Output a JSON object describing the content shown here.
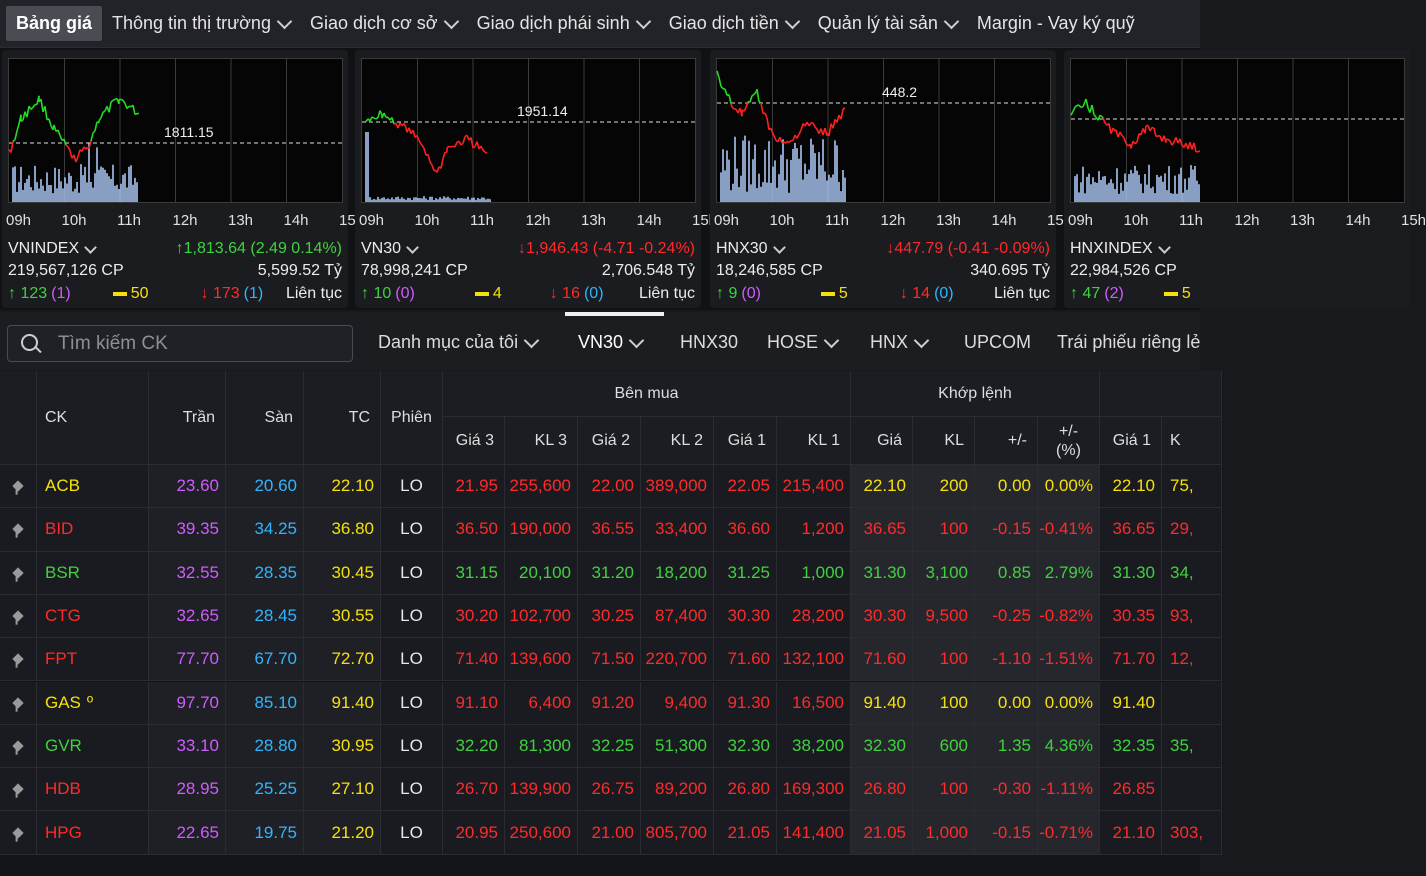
{
  "nav": {
    "items": [
      {
        "label": "Bảng giá",
        "active": true,
        "dropdown": false
      },
      {
        "label": "Thông tin thị trường",
        "dropdown": true
      },
      {
        "label": "Giao dịch cơ sở",
        "dropdown": true
      },
      {
        "label": "Giao dịch phái sinh",
        "dropdown": true
      },
      {
        "label": "Giao dịch tiền",
        "dropdown": true
      },
      {
        "label": "Quản lý tài sản",
        "dropdown": true
      },
      {
        "label": "Margin - Vay ký quỹ",
        "dropdown": false
      }
    ]
  },
  "time_ticks": [
    "09h",
    "10h",
    "11h",
    "12h",
    "13h",
    "14h",
    "15h"
  ],
  "indices": [
    {
      "name": "VNINDEX",
      "value_change": "1,813.64 (2.49 0.14%)",
      "trend": "up",
      "ref_label": "1811.15",
      "volume": "219,567,126 CP",
      "turnover": "5,599.52 Tỷ",
      "advances": "123",
      "adv_ceiling": "(1)",
      "unchanged": "50",
      "declines": "173",
      "dec_floor": "(1)",
      "session": "Liên tục"
    },
    {
      "name": "VN30",
      "value_change": "1,946.43 (-4.71 -0.24%)",
      "trend": "down",
      "ref_label": "1951.14",
      "volume": "78,998,241 CP",
      "turnover": "2,706.548 Tỷ",
      "advances": "10",
      "adv_ceiling": "(0)",
      "unchanged": "4",
      "declines": "16",
      "dec_floor": "(0)",
      "session": "Liên tục"
    },
    {
      "name": "HNX30",
      "value_change": "447.79 (-0.41 -0.09%)",
      "trend": "down",
      "ref_label": "448.2",
      "volume": "18,246,585 CP",
      "turnover": "340.695 Tỷ",
      "advances": "9",
      "adv_ceiling": "(0)",
      "unchanged": "5",
      "declines": "14",
      "dec_floor": "(0)",
      "session": "Liên tục"
    },
    {
      "name": "HNXINDEX",
      "value_change": "",
      "trend": "up",
      "ref_label": "",
      "volume": "22,984,526 CP",
      "turnover": "",
      "advances": "47",
      "adv_ceiling": "(2)",
      "unchanged": "5",
      "declines": "",
      "dec_floor": "",
      "session": ""
    }
  ],
  "search": {
    "placeholder": "Tìm kiếm CK"
  },
  "tabs": [
    {
      "label": "Danh mục của tôi",
      "dropdown": true
    },
    {
      "label": "VN30",
      "dropdown": true,
      "active": true
    },
    {
      "label": "HNX30",
      "dropdown": false
    },
    {
      "label": "HOSE",
      "dropdown": true
    },
    {
      "label": "HNX",
      "dropdown": true
    },
    {
      "label": "UPCOM",
      "dropdown": false
    },
    {
      "label": "Trái phiếu riêng lẻ",
      "dropdown": false
    }
  ],
  "table": {
    "headers": {
      "ck": "CK",
      "tran": "Trần",
      "san": "Sàn",
      "tc": "TC",
      "phien": "Phiên",
      "ben_mua": "Bên mua",
      "khop_lenh": "Khớp lệnh",
      "gia3": "Giá 3",
      "kl3": "KL 3",
      "gia2": "Giá 2",
      "kl2": "KL 2",
      "gia1": "Giá 1",
      "kl1": "KL 1",
      "gia": "Giá",
      "kl": "KL",
      "chg": "+/-",
      "pct": "+/-\n(%)",
      "sell_gia1": "Giá 1",
      "sell_kl1": "K"
    },
    "colors": {
      "up": "#3fd23f",
      "down": "#ff2a2a",
      "ref": "#f5e10a",
      "ceil": "#d05bff",
      "floor": "#2fb5ff"
    },
    "rows": [
      {
        "ck": "ACB",
        "tran": "23.60",
        "san": "20.60",
        "tc": "22.10",
        "phien": "LO",
        "gia3": "21.95",
        "kl3": "255,600",
        "gia2": "22.00",
        "kl2": "389,000",
        "gia1": "22.05",
        "kl1": "215,400",
        "gia": "22.10",
        "kl": "200",
        "chg": "0.00",
        "pct": "0.00%",
        "s_gia1": "22.10",
        "s_kl1": "75,",
        "t": [
          "d",
          "d",
          "d",
          "r",
          "r",
          "r",
          "r"
        ]
      },
      {
        "ck": "BID",
        "tran": "39.35",
        "san": "34.25",
        "tc": "36.80",
        "phien": "LO",
        "gia3": "36.50",
        "kl3": "190,000",
        "gia2": "36.55",
        "kl2": "33,400",
        "gia1": "36.60",
        "kl1": "1,200",
        "gia": "36.65",
        "kl": "100",
        "chg": "-0.15",
        "pct": "-0.41%",
        "s_gia1": "36.65",
        "s_kl1": "29,",
        "t": [
          "d",
          "d",
          "d",
          "d",
          "d",
          "d",
          "d"
        ]
      },
      {
        "ck": "BSR",
        "tran": "32.55",
        "san": "28.35",
        "tc": "30.45",
        "phien": "LO",
        "gia3": "31.15",
        "kl3": "20,100",
        "gia2": "31.20",
        "kl2": "18,200",
        "gia1": "31.25",
        "kl1": "1,000",
        "gia": "31.30",
        "kl": "3,100",
        "chg": "0.85",
        "pct": "2.79%",
        "s_gia1": "31.30",
        "s_kl1": "34,",
        "t": [
          "u",
          "u",
          "u",
          "u",
          "u",
          "u",
          "u"
        ]
      },
      {
        "ck": "CTG",
        "tran": "32.65",
        "san": "28.45",
        "tc": "30.55",
        "phien": "LO",
        "gia3": "30.20",
        "kl3": "102,700",
        "gia2": "30.25",
        "kl2": "87,400",
        "gia1": "30.30",
        "kl1": "28,200",
        "gia": "30.30",
        "kl": "9,500",
        "chg": "-0.25",
        "pct": "-0.82%",
        "s_gia1": "30.35",
        "s_kl1": "93,",
        "t": [
          "d",
          "d",
          "d",
          "d",
          "d",
          "d",
          "d"
        ]
      },
      {
        "ck": "FPT",
        "tran": "77.70",
        "san": "67.70",
        "tc": "72.70",
        "phien": "LO",
        "gia3": "71.40",
        "kl3": "139,600",
        "gia2": "71.50",
        "kl2": "220,700",
        "gia1": "71.60",
        "kl1": "132,100",
        "gia": "71.60",
        "kl": "100",
        "chg": "-1.10",
        "pct": "-1.51%",
        "s_gia1": "71.70",
        "s_kl1": "12,",
        "t": [
          "d",
          "d",
          "d",
          "d",
          "d",
          "d",
          "d"
        ]
      },
      {
        "ck": "GAS",
        "tran": "97.70",
        "san": "85.10",
        "tc": "91.40",
        "phien": "LO",
        "gia3": "91.10",
        "kl3": "6,400",
        "gia2": "91.20",
        "kl2": "9,400",
        "gia1": "91.30",
        "kl1": "16,500",
        "gia": "91.40",
        "kl": "100",
        "chg": "0.00",
        "pct": "0.00%",
        "s_gia1": "91.40",
        "s_kl1": "",
        "t": [
          "d",
          "d",
          "d",
          "r",
          "r",
          "r",
          "r"
        ],
        "mark": "º"
      },
      {
        "ck": "GVR",
        "tran": "33.10",
        "san": "28.80",
        "tc": "30.95",
        "phien": "LO",
        "gia3": "32.20",
        "kl3": "81,300",
        "gia2": "32.25",
        "kl2": "51,300",
        "gia1": "32.30",
        "kl1": "38,200",
        "gia": "32.30",
        "kl": "600",
        "chg": "1.35",
        "pct": "4.36%",
        "s_gia1": "32.35",
        "s_kl1": "35,",
        "t": [
          "u",
          "u",
          "u",
          "u",
          "u",
          "u",
          "u"
        ]
      },
      {
        "ck": "HDB",
        "tran": "28.95",
        "san": "25.25",
        "tc": "27.10",
        "phien": "LO",
        "gia3": "26.70",
        "kl3": "139,900",
        "gia2": "26.75",
        "kl2": "89,200",
        "gia1": "26.80",
        "kl1": "169,300",
        "gia": "26.80",
        "kl": "100",
        "chg": "-0.30",
        "pct": "-1.11%",
        "s_gia1": "26.85",
        "s_kl1": "",
        "t": [
          "d",
          "d",
          "d",
          "d",
          "d",
          "d",
          "d"
        ]
      },
      {
        "ck": "HPG",
        "tran": "22.65",
        "san": "19.75",
        "tc": "21.20",
        "phien": "LO",
        "gia3": "20.95",
        "kl3": "250,600",
        "gia2": "21.00",
        "kl2": "805,700",
        "gia1": "21.05",
        "kl1": "141,400",
        "gia": "21.05",
        "kl": "1,000",
        "chg": "-0.15",
        "pct": "-0.71%",
        "s_gia1": "21.10",
        "s_kl1": "303,",
        "t": [
          "d",
          "d",
          "d",
          "d",
          "d",
          "d",
          "d"
        ]
      }
    ]
  }
}
